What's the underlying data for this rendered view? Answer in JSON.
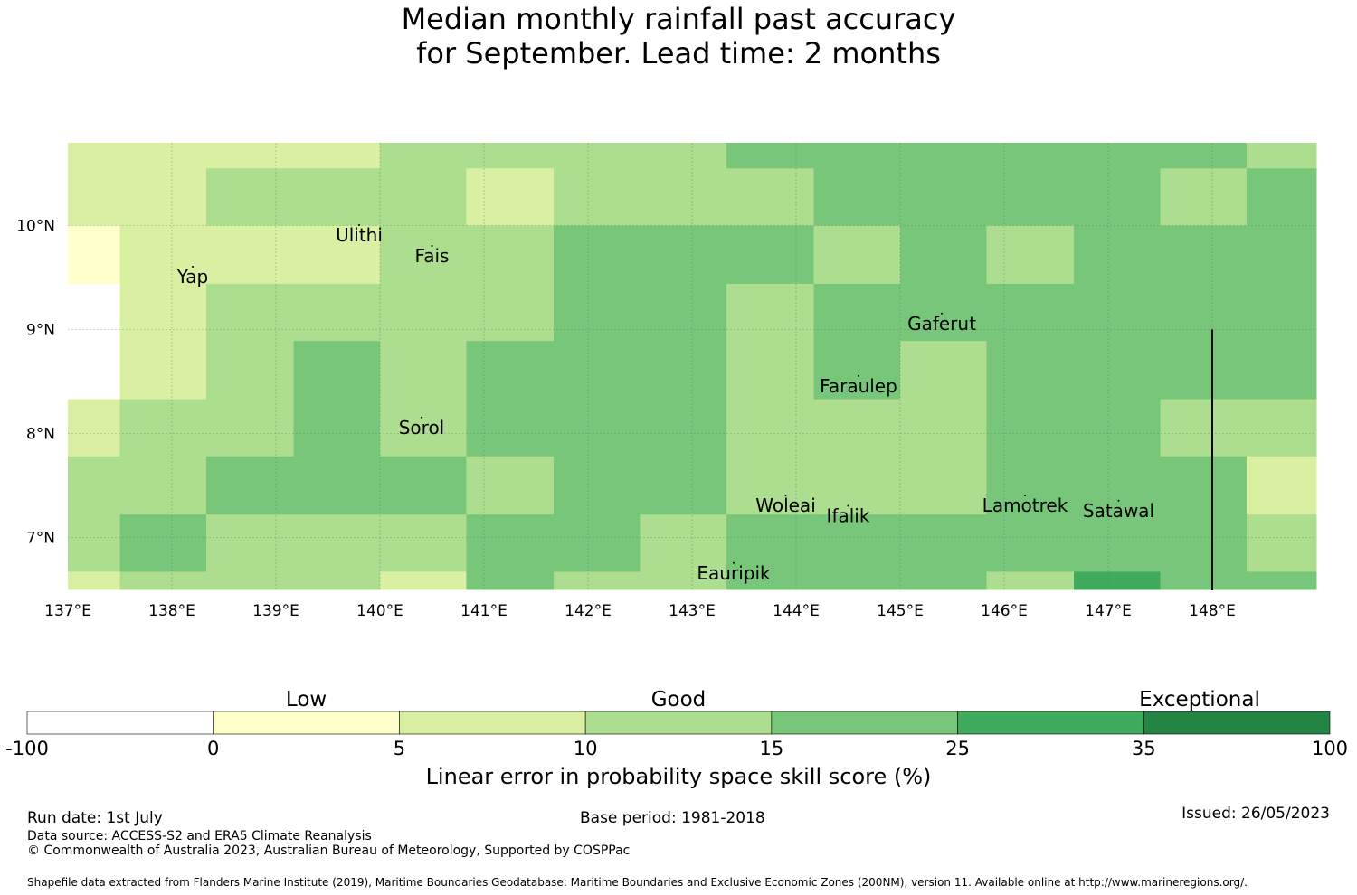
{
  "title": {
    "line1": "Median monthly rainfall past accuracy",
    "line2": "for September. Lead time: 2 months"
  },
  "map": {
    "lon_range": [
      137,
      149
    ],
    "lat_range": [
      6.5,
      10.8
    ],
    "lon_ticks": [
      "137°E",
      "138°E",
      "139°E",
      "140°E",
      "141°E",
      "142°E",
      "143°E",
      "144°E",
      "145°E",
      "146°E",
      "147°E",
      "148°E"
    ],
    "lat_ticks": [
      "10°N",
      "9°N",
      "8°N",
      "7°N"
    ],
    "places": [
      {
        "name": "Yap",
        "lon": 138.2,
        "lat": 9.5
      },
      {
        "name": "Ulithi",
        "lon": 139.8,
        "lat": 9.9
      },
      {
        "name": "Fais",
        "lon": 140.5,
        "lat": 9.7
      },
      {
        "name": "Gaferut",
        "lon": 145.4,
        "lat": 9.05
      },
      {
        "name": "Faraulep",
        "lon": 144.6,
        "lat": 8.45
      },
      {
        "name": "Sorol",
        "lon": 140.4,
        "lat": 8.05
      },
      {
        "name": "Woleai",
        "lon": 143.9,
        "lat": 7.3
      },
      {
        "name": "Ifalik",
        "lon": 144.5,
        "lat": 7.2
      },
      {
        "name": "Lamotrek",
        "lon": 146.2,
        "lat": 7.3
      },
      {
        "name": "Satawal",
        "lon": 147.1,
        "lat": 7.25
      },
      {
        "name": "Eauripik",
        "lon": 143.4,
        "lat": 6.65
      }
    ],
    "boundary_lon": 148.0,
    "boundary_lat_range": [
      6.5,
      9.0
    ]
  },
  "chart_data": {
    "type": "heatmap",
    "title": "Median monthly rainfall past accuracy for September. Lead time: 2 months",
    "xlabel": "",
    "ylabel": "",
    "x_edges": [
      137,
      137.5,
      138.33,
      139.17,
      140,
      140.83,
      141.67,
      142.5,
      143.33,
      144.17,
      145,
      145.83,
      146.67,
      147.5,
      148.33,
      149
    ],
    "y_edges": [
      10.8,
      10.55,
      10.0,
      9.44,
      8.89,
      8.33,
      7.78,
      7.22,
      6.67,
      6.5
    ],
    "class_values": [
      [
        2,
        2,
        2,
        2,
        3,
        3,
        3,
        3,
        4,
        4,
        4,
        4,
        4,
        4,
        3
      ],
      [
        2,
        2,
        3,
        3,
        3,
        2,
        3,
        3,
        3,
        4,
        4,
        4,
        4,
        3,
        4
      ],
      [
        1,
        2,
        2,
        2,
        3,
        3,
        4,
        4,
        4,
        3,
        4,
        3,
        4,
        4,
        4
      ],
      [
        -1,
        2,
        3,
        3,
        3,
        3,
        4,
        4,
        3,
        4,
        4,
        4,
        4,
        4,
        4
      ],
      [
        -1,
        2,
        3,
        4,
        3,
        4,
        4,
        4,
        3,
        4,
        3,
        4,
        4,
        4,
        4
      ],
      [
        2,
        3,
        3,
        4,
        3,
        4,
        4,
        4,
        3,
        3,
        3,
        4,
        4,
        3,
        3
      ],
      [
        3,
        3,
        4,
        4,
        4,
        3,
        4,
        4,
        3,
        3,
        3,
        4,
        4,
        4,
        2
      ],
      [
        3,
        4,
        3,
        3,
        3,
        4,
        4,
        3,
        4,
        4,
        4,
        4,
        4,
        4,
        3
      ],
      [
        2,
        3,
        3,
        3,
        2,
        4,
        3,
        3,
        4,
        4,
        4,
        3,
        5,
        4,
        4
      ]
    ],
    "class_note": "-1 = no data; 0..6 = legend class index",
    "legend": {
      "boundaries": [
        "-100",
        "0",
        "5",
        "10",
        "15",
        "25",
        "35",
        "100"
      ],
      "colors": [
        "#ffffff",
        "#ffffcc",
        "#d9f0a3",
        "#addd8e",
        "#78c679",
        "#41ab5d",
        "#238443"
      ],
      "category_labels": [
        "Low",
        "Good",
        "Exceptional"
      ],
      "caption": "Linear error in probability space skill score (%)"
    }
  },
  "footer": {
    "run_date": "Run date: 1st July",
    "base_period": "Base period: 1981-2018",
    "issued": "Issued: 26/05/2023",
    "data_source": "Data source: ACCESS-S2 and ERA5 Climate Reanalysis",
    "copyright": "© Commonwealth of Australia 2023, Australian Bureau of Meteorology, Supported by COSPPac",
    "shapefile": "Shapefile data extracted from Flanders Marine Institute (2019), Maritime Boundaries Geodatabase: Maritime Boundaries and Exclusive Economic Zones (200NM), version 11. Available online at http://www.marineregions.org/."
  }
}
